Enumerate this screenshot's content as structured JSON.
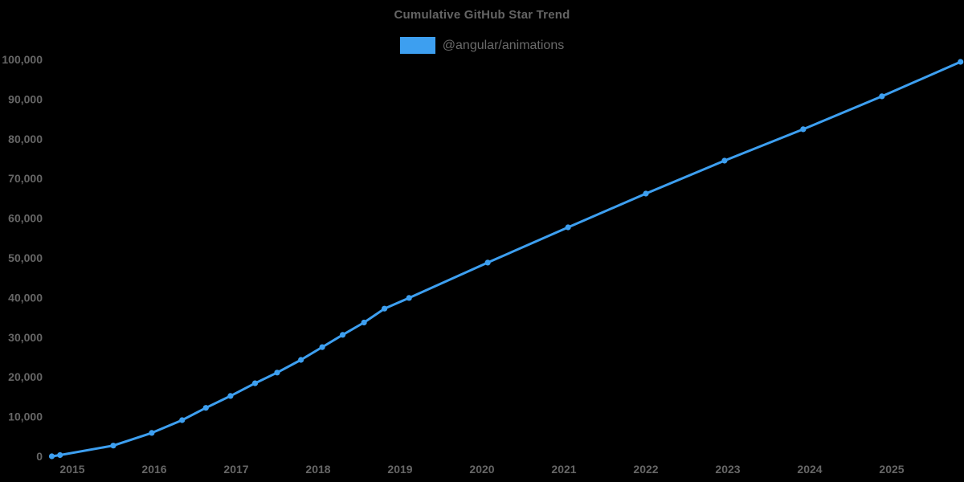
{
  "chart": {
    "title": "Cumulative GitHub Star Trend",
    "legend": {
      "series_label": "@angular/animations"
    },
    "colors": {
      "line": "#3d9ff0",
      "marker": "#3d9ff0",
      "text": "#666666",
      "background": "#000000"
    }
  },
  "chart_data": {
    "type": "line",
    "title": "Cumulative GitHub Star Trend",
    "xlabel": "",
    "ylabel": "",
    "legend_position": "top-center",
    "grid": false,
    "background": "#000000",
    "axis_lines": false,
    "xlim": [
      2014.55,
      2025.95
    ],
    "ylim": [
      0,
      100000
    ],
    "x_ticks": [
      2015,
      2016,
      2017,
      2018,
      2019,
      2020,
      2021,
      2022,
      2023,
      2024,
      2025
    ],
    "y_ticks": [
      0,
      10000,
      20000,
      30000,
      40000,
      50000,
      60000,
      70000,
      80000,
      90000,
      100000
    ],
    "series": [
      {
        "name": "@angular/animations",
        "color": "#3d9ff0",
        "points": [
          {
            "date": "2014-09",
            "x": 2014.75,
            "y": 0
          },
          {
            "date": "2014-11",
            "x": 2014.85,
            "y": 300
          },
          {
            "date": "2015-07",
            "x": 2015.5,
            "y": 2700
          },
          {
            "date": "2015-12",
            "x": 2015.97,
            "y": 5900
          },
          {
            "date": "2016-05",
            "x": 2016.34,
            "y": 9100
          },
          {
            "date": "2016-08",
            "x": 2016.63,
            "y": 12200
          },
          {
            "date": "2016-12",
            "x": 2016.93,
            "y": 15200
          },
          {
            "date": "2017-03",
            "x": 2017.23,
            "y": 18400
          },
          {
            "date": "2017-07",
            "x": 2017.5,
            "y": 21100
          },
          {
            "date": "2017-10",
            "x": 2017.79,
            "y": 24300
          },
          {
            "date": "2018-01",
            "x": 2018.05,
            "y": 27500
          },
          {
            "date": "2018-04",
            "x": 2018.3,
            "y": 30600
          },
          {
            "date": "2018-07",
            "x": 2018.56,
            "y": 33700
          },
          {
            "date": "2018-10",
            "x": 2018.81,
            "y": 37200
          },
          {
            "date": "2019-02",
            "x": 2019.11,
            "y": 39900
          },
          {
            "date": "2020-01",
            "x": 2020.07,
            "y": 48800
          },
          {
            "date": "2021-01",
            "x": 2021.05,
            "y": 57700
          },
          {
            "date": "2022-01",
            "x": 2022.0,
            "y": 66200
          },
          {
            "date": "2022-12",
            "x": 2022.96,
            "y": 74500
          },
          {
            "date": "2023-12",
            "x": 2023.92,
            "y": 82400
          },
          {
            "date": "2024-11",
            "x": 2024.88,
            "y": 90700
          },
          {
            "date": "2025-11",
            "x": 2025.84,
            "y": 99400
          }
        ]
      }
    ]
  }
}
